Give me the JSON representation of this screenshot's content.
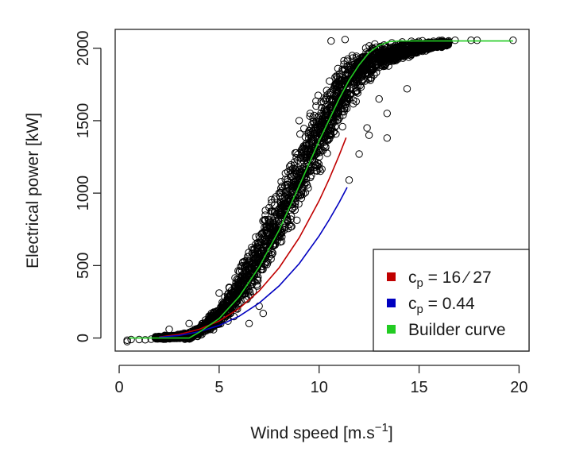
{
  "chart_data": {
    "type": "scatter",
    "title": "",
    "xlabel": "Wind speed [m.s",
    "xlabel_superscript": "−1",
    "xlabel_suffix": "]",
    "ylabel": "Electrical power [kW]",
    "xlim": [
      -0.2,
      20.5
    ],
    "ylim": [
      -90,
      2130
    ],
    "x_ticks": [
      0,
      5,
      10,
      15,
      20
    ],
    "y_ticks": [
      0,
      500,
      1000,
      1500,
      2000
    ],
    "grid": false,
    "legend_position": "bottom-right",
    "colors": {
      "points": "#000000",
      "cp_betz": "#c00000",
      "cp_044": "#0000c0",
      "builder": "#22cc22"
    },
    "legend": [
      {
        "key": "cp_betz",
        "symbol": "c",
        "subscript": "p",
        "text": " = 16 ⁄ 27"
      },
      {
        "key": "cp_044",
        "symbol": "c",
        "subscript": "p",
        "text": " = 0.44"
      },
      {
        "key": "builder",
        "symbol": "",
        "subscript": "",
        "text": "Builder curve"
      }
    ],
    "series": [
      {
        "key": "cp_betz",
        "kind": "line",
        "x": [
          2.0,
          3.0,
          4.0,
          5.0,
          6.0,
          7.0,
          8.0,
          9.0,
          10.0,
          10.5,
          11.0,
          11.35
        ],
        "y": [
          7,
          25,
          60,
          118,
          204,
          325,
          485,
          691,
          947,
          1096,
          1260,
          1383
        ]
      },
      {
        "key": "cp_044",
        "kind": "line",
        "x": [
          2.0,
          3.0,
          4.0,
          5.0,
          6.0,
          7.0,
          8.0,
          9.0,
          10.0,
          10.5,
          11.0,
          11.4
        ],
        "y": [
          5,
          18,
          44,
          87,
          150,
          241,
          360,
          513,
          704,
          815,
          935,
          1040
        ]
      },
      {
        "key": "builder",
        "kind": "line",
        "x": [
          0.5,
          1,
          2,
          3,
          3.5,
          4,
          5,
          6,
          7,
          8,
          9,
          10,
          11,
          11.5,
          12,
          12.5,
          13,
          13.5,
          14,
          15,
          16,
          17,
          18,
          19,
          19.7
        ],
        "y": [
          0,
          0,
          0,
          0,
          0,
          40,
          135,
          285,
          490,
          745,
          1050,
          1360,
          1650,
          1780,
          1885,
          1970,
          2020,
          2045,
          2050,
          2050,
          2050,
          2050,
          2050,
          2050,
          2050
        ]
      }
    ],
    "scatter_density_band": {
      "x": [
        1.8,
        2.5,
        3.5,
        4.0,
        5.0,
        6.0,
        7.0,
        8.0,
        9.0,
        10.0,
        11.0,
        12.0,
        13.0,
        14.0,
        15.0,
        16.5
      ],
      "y_low": [
        -10,
        -15,
        -15,
        5,
        45,
        140,
        300,
        520,
        780,
        1080,
        1380,
        1640,
        1820,
        1900,
        1960,
        2010
      ],
      "y_high": [
        15,
        25,
        45,
        95,
        250,
        520,
        820,
        1130,
        1440,
        1730,
        1940,
        2055,
        2060,
        2060,
        2060,
        2060
      ]
    },
    "outlier_points": [
      {
        "x": 0.4,
        "y": -15
      },
      {
        "x": 0.6,
        "y": -10
      },
      {
        "x": 0.4,
        "y": -25
      },
      {
        "x": 1.0,
        "y": -10
      },
      {
        "x": 1.3,
        "y": -12
      },
      {
        "x": 1.6,
        "y": -8
      },
      {
        "x": 12.4,
        "y": 1450
      },
      {
        "x": 12.5,
        "y": 1400
      },
      {
        "x": 13.4,
        "y": 1550
      },
      {
        "x": 13.4,
        "y": 1380
      },
      {
        "x": 11.5,
        "y": 1090
      },
      {
        "x": 12.0,
        "y": 1270
      },
      {
        "x": 14.4,
        "y": 1720
      },
      {
        "x": 13.0,
        "y": 1650
      },
      {
        "x": 9.0,
        "y": 1500
      },
      {
        "x": 9.5,
        "y": 1430
      },
      {
        "x": 7.2,
        "y": 170
      },
      {
        "x": 7.0,
        "y": 220
      },
      {
        "x": 6.5,
        "y": 100
      },
      {
        "x": 5.5,
        "y": 350
      },
      {
        "x": 5.0,
        "y": 310
      },
      {
        "x": 4.5,
        "y": 150
      },
      {
        "x": 3.5,
        "y": 100
      },
      {
        "x": 2.5,
        "y": 60
      },
      {
        "x": 10.6,
        "y": 2050
      },
      {
        "x": 11.3,
        "y": 2060
      },
      {
        "x": 10.8,
        "y": 1800
      },
      {
        "x": 8.0,
        "y": 1000
      },
      {
        "x": 7.5,
        "y": 900
      },
      {
        "x": 15.5,
        "y": 2040
      },
      {
        "x": 16.2,
        "y": 2045
      },
      {
        "x": 16.8,
        "y": 2055
      },
      {
        "x": 17.6,
        "y": 2055
      },
      {
        "x": 17.9,
        "y": 2055
      },
      {
        "x": 19.7,
        "y": 2055
      }
    ]
  }
}
